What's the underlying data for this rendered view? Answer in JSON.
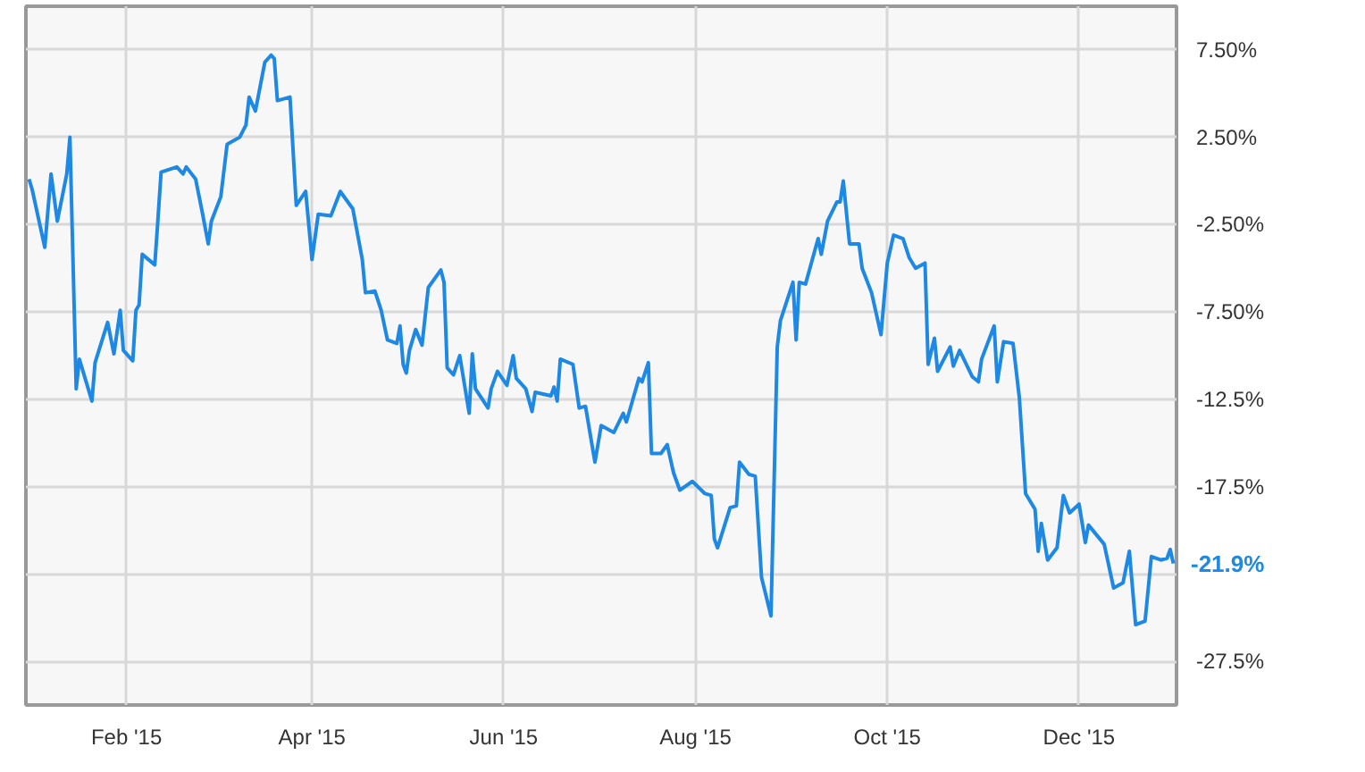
{
  "chart_data": {
    "type": "line",
    "x": [
      "2015-01-01",
      "2015-01-02",
      "2015-01-06",
      "2015-01-08",
      "2015-01-10",
      "2015-01-13",
      "2015-01-14",
      "2015-01-16",
      "2015-01-17",
      "2015-01-21",
      "2015-01-22",
      "2015-01-26",
      "2015-01-28",
      "2015-01-30",
      "2015-01-31",
      "2015-02-03",
      "2015-02-04",
      "2015-02-05",
      "2015-02-06",
      "2015-02-10",
      "2015-02-11",
      "2015-02-12",
      "2015-02-17",
      "2015-02-19",
      "2015-02-20",
      "2015-02-23",
      "2015-02-25",
      "2015-02-27",
      "2015-02-28",
      "2015-03-03",
      "2015-03-05",
      "2015-03-09",
      "2015-03-11",
      "2015-03-12",
      "2015-03-14",
      "2015-03-17",
      "2015-03-19",
      "2015-03-20",
      "2015-03-21",
      "2015-03-25",
      "2015-03-27",
      "2015-03-30",
      "2015-04-01",
      "2015-04-03",
      "2015-04-07",
      "2015-04-10",
      "2015-04-14",
      "2015-04-17",
      "2015-04-18",
      "2015-04-21",
      "2015-04-23",
      "2015-04-25",
      "2015-04-28",
      "2015-04-29",
      "2015-04-30",
      "2015-05-01",
      "2015-05-02",
      "2015-05-04",
      "2015-05-06",
      "2015-05-08",
      "2015-05-12",
      "2015-05-13",
      "2015-05-14",
      "2015-05-16",
      "2015-05-18",
      "2015-05-21",
      "2015-05-22",
      "2015-05-23",
      "2015-05-27",
      "2015-05-28",
      "2015-05-30",
      "2015-06-02",
      "2015-06-04",
      "2015-06-05",
      "2015-06-08",
      "2015-06-10",
      "2015-06-11",
      "2015-06-16",
      "2015-06-17",
      "2015-06-18",
      "2015-06-19",
      "2015-06-23",
      "2015-06-25",
      "2015-06-27",
      "2015-06-30",
      "2015-07-02",
      "2015-07-06",
      "2015-07-09",
      "2015-07-10",
      "2015-07-14",
      "2015-07-15",
      "2015-07-17",
      "2015-07-18",
      "2015-07-21",
      "2015-07-23",
      "2015-07-25",
      "2015-07-27",
      "2015-07-31",
      "2015-08-04",
      "2015-08-06",
      "2015-08-07",
      "2015-08-08",
      "2015-08-12",
      "2015-08-14",
      "2015-08-15",
      "2015-08-18",
      "2015-08-20",
      "2015-08-22",
      "2015-08-25",
      "2015-08-27",
      "2015-08-28",
      "2015-09-01",
      "2015-09-02",
      "2015-09-03",
      "2015-09-05",
      "2015-09-09",
      "2015-09-10",
      "2015-09-12",
      "2015-09-15",
      "2015-09-16",
      "2015-09-17",
      "2015-09-19",
      "2015-09-22",
      "2015-09-23",
      "2015-09-26",
      "2015-09-29",
      "2015-10-01",
      "2015-10-03",
      "2015-10-06",
      "2015-10-08",
      "2015-10-10",
      "2015-10-13",
      "2015-10-14",
      "2015-10-16",
      "2015-10-17",
      "2015-10-21",
      "2015-10-22",
      "2015-10-24",
      "2015-10-28",
      "2015-10-30",
      "2015-10-31",
      "2015-11-04",
      "2015-11-05",
      "2015-11-07",
      "2015-11-10",
      "2015-11-12",
      "2015-11-14",
      "2015-11-17",
      "2015-11-18",
      "2015-11-19",
      "2015-11-21",
      "2015-11-24",
      "2015-11-26",
      "2015-11-28",
      "2015-12-01",
      "2015-12-03",
      "2015-12-04",
      "2015-12-09",
      "2015-12-12",
      "2015-12-15",
      "2015-12-17",
      "2015-12-19",
      "2015-12-22",
      "2015-12-24",
      "2015-12-27",
      "2015-12-29",
      "2015-12-30",
      "2015-12-31"
    ],
    "series": [
      {
        "color": "#1e88e5",
        "values": [
          0.1,
          -0.5,
          -3.8,
          0.4,
          -2.3,
          0.4,
          2.5,
          -11.9,
          -10.2,
          -12.6,
          -10.4,
          -8.1,
          -9.9,
          -7.4,
          -9.7,
          -10.3,
          -7.4,
          -7.1,
          -4.2,
          -4.8,
          -2.2,
          0.5,
          0.8,
          0.4,
          0.8,
          0.1,
          -1.7,
          -3.6,
          -2.3,
          -0.9,
          2.1,
          2.5,
          3.2,
          4.8,
          4.0,
          6.8,
          7.2,
          7.0,
          4.6,
          4.8,
          -1.4,
          -0.6,
          -4.5,
          -1.9,
          -2.0,
          -0.6,
          -1.6,
          -4.5,
          -6.4,
          -6.3,
          -7.4,
          -9.1,
          -9.3,
          -8.3,
          -10.5,
          -11.0,
          -9.7,
          -8.5,
          -9.4,
          -6.1,
          -5.1,
          -5.8,
          -10.7,
          -11.1,
          -10.0,
          -13.3,
          -9.9,
          -11.9,
          -13.0,
          -11.9,
          -10.9,
          -11.7,
          -10.0,
          -11.3,
          -11.9,
          -13.2,
          -12.1,
          -12.3,
          -11.8,
          -12.6,
          -10.2,
          -10.5,
          -13.0,
          -12.9,
          -16.1,
          -14.0,
          -14.4,
          -13.3,
          -13.8,
          -11.3,
          -11.5,
          -10.4,
          -15.6,
          -15.6,
          -15.1,
          -16.7,
          -17.7,
          -17.2,
          -17.9,
          -18.0,
          -20.5,
          -21.0,
          -18.7,
          -18.6,
          -16.1,
          -16.8,
          -16.9,
          -22.7,
          -24.9,
          -9.5,
          -8.0,
          -5.8,
          -9.1,
          -5.8,
          -5.9,
          -3.3,
          -4.2,
          -2.3,
          -1.2,
          -1.2,
          0.0,
          -3.6,
          -3.6,
          -5.0,
          -6.4,
          -8.8,
          -4.7,
          -3.1,
          -3.3,
          -4.4,
          -5.0,
          -4.7,
          -10.5,
          -9.0,
          -10.9,
          -9.5,
          -10.6,
          -9.7,
          -11.2,
          -11.5,
          -10.2,
          -8.3,
          -11.5,
          -9.2,
          -9.3,
          -12.4,
          -17.9,
          -18.8,
          -21.2,
          -19.6,
          -21.7,
          -21.0,
          -18.0,
          -19.0,
          -18.5,
          -20.7,
          -19.7,
          -20.8,
          -23.3,
          -23.0,
          -21.2,
          -25.4,
          -25.2,
          -21.5,
          -21.7,
          -21.6,
          -21.1,
          -21.9
        ]
      }
    ],
    "xlim": [
      "2014-12-31",
      "2016-01-01"
    ],
    "xticks": [
      {
        "value": "2015-02-01",
        "label": "Feb '15"
      },
      {
        "value": "2015-04-01",
        "label": "Apr '15"
      },
      {
        "value": "2015-06-01",
        "label": "Jun '15"
      },
      {
        "value": "2015-08-01",
        "label": "Aug '15"
      },
      {
        "value": "2015-10-01",
        "label": "Oct '15"
      },
      {
        "value": "2015-12-01",
        "label": "Dec '15"
      }
    ],
    "ylim": [
      -30,
      10
    ],
    "yticks": [
      {
        "value": 7.5,
        "label": "7.50%"
      },
      {
        "value": 2.5,
        "label": "2.50%"
      },
      {
        "value": -2.5,
        "label": "-2.50%"
      },
      {
        "value": -7.5,
        "label": "-7.50%"
      },
      {
        "value": -12.5,
        "label": "-12.5%"
      },
      {
        "value": -17.5,
        "label": "-17.5%"
      },
      {
        "value": -22.5,
        "label": null
      },
      {
        "value": -27.5,
        "label": "-27.5%"
      }
    ],
    "grid": true,
    "annotations": [
      "-21.9%"
    ]
  }
}
